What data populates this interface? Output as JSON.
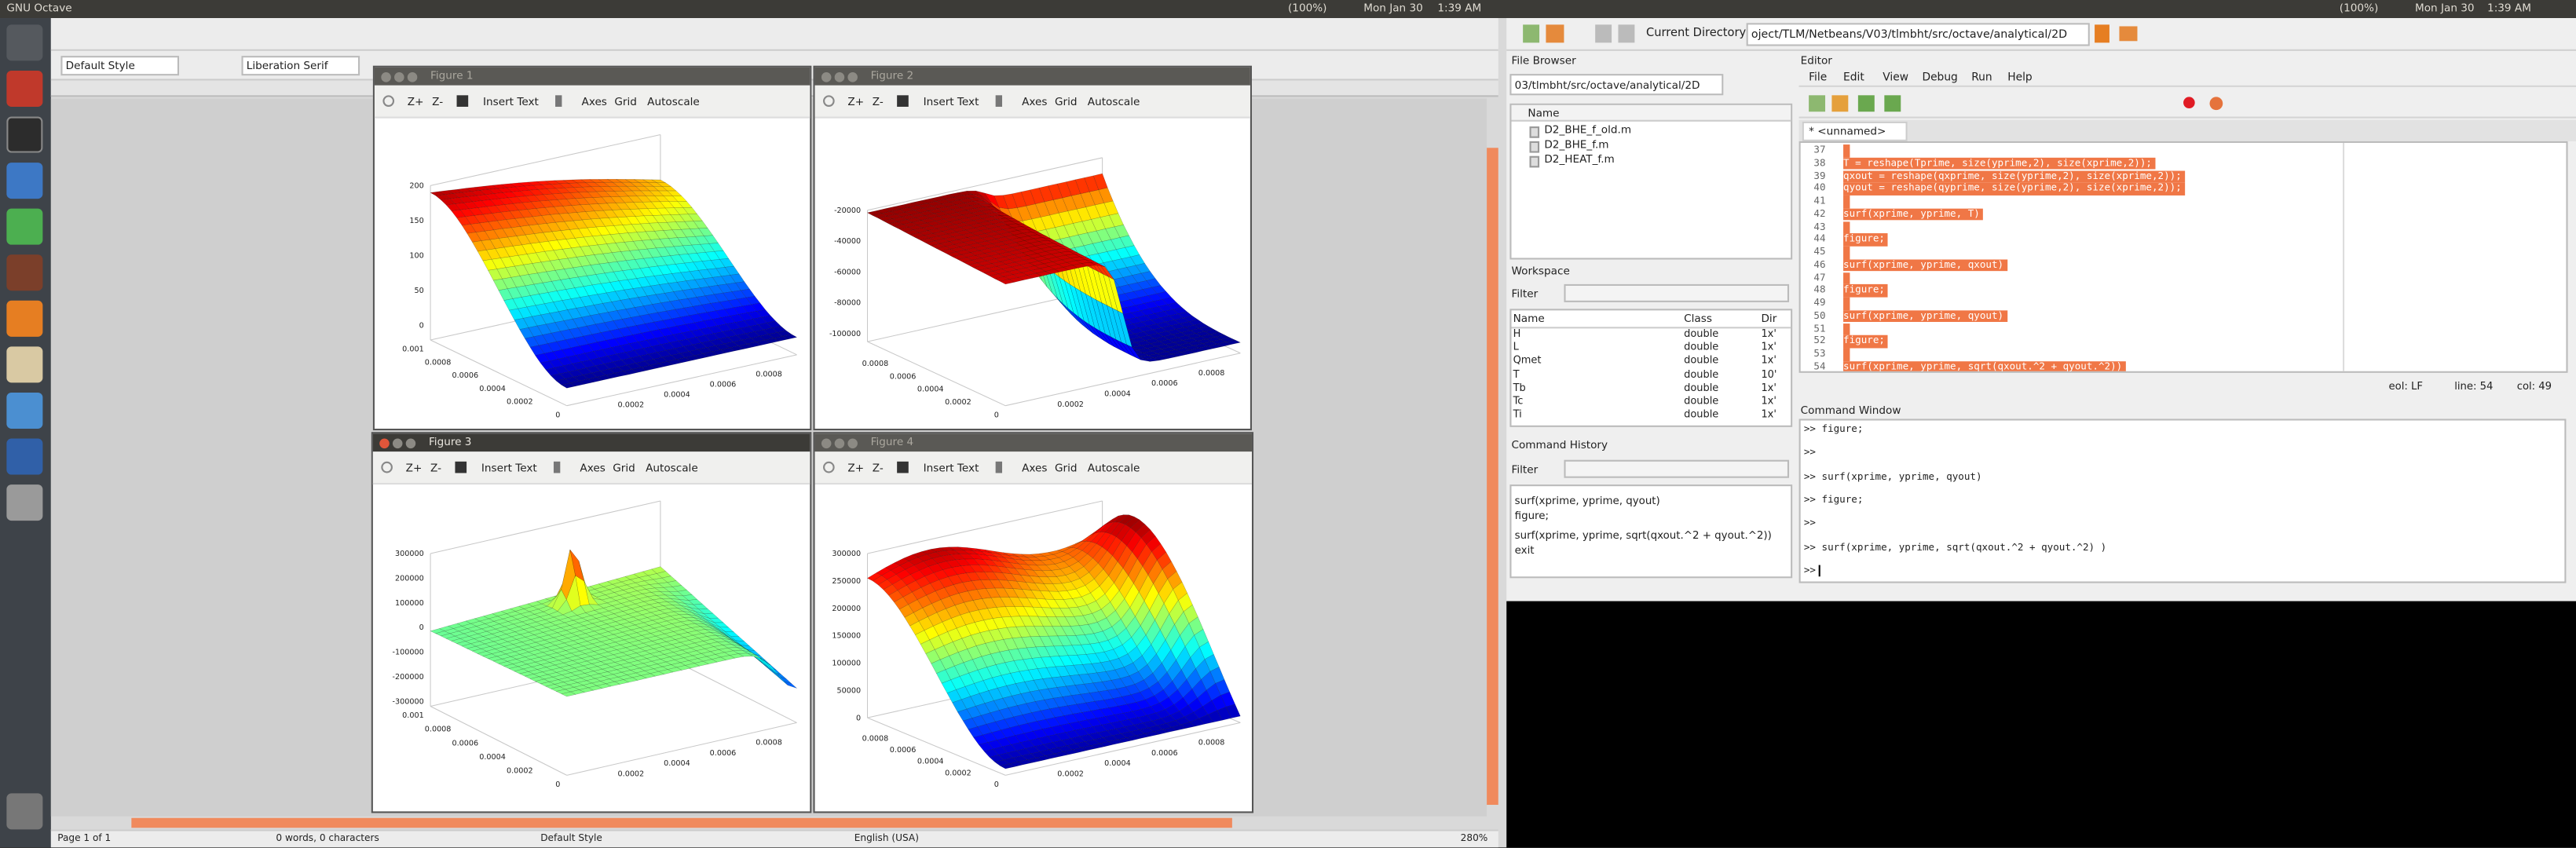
{
  "top_bar": {
    "app_title": "GNU Octave",
    "battery": "(100%)",
    "date": "Mon Jan 30",
    "time": "1:39 AM",
    "battery_2": "(100%)",
    "date_2": "Mon Jan 30",
    "time_2": "1:39 AM"
  },
  "writer": {
    "paragraph_style": "Default Style",
    "font_name": "Liberation Serif",
    "status": {
      "page": "Page 1 of 1",
      "words": "0 words, 0 characters",
      "style": "Default Style",
      "language": "English (USA)",
      "zoom": "280%"
    }
  },
  "figures": [
    {
      "title": "Figure 1",
      "toolbar": [
        "Z+",
        "Z-",
        "Insert Text",
        "Axes",
        "Grid",
        "Autoscale"
      ],
      "z_ticks": [
        "200",
        "150",
        "100",
        "50",
        "0"
      ],
      "left_ticks": [
        "0.001",
        "0.0008",
        "0.0006",
        "0.0004",
        "0.0002",
        "0"
      ],
      "right_ticks": [
        "0.0002",
        "0.0004",
        "0.0006",
        "0.0008"
      ]
    },
    {
      "title": "Figure 2",
      "toolbar": [
        "Z+",
        "Z-",
        "Insert Text",
        "Axes",
        "Grid",
        "Autoscale"
      ],
      "z_ticks": [
        "-20000",
        "-40000",
        "-60000",
        "-80000",
        "-100000"
      ],
      "left_ticks": [
        "0.0008",
        "0.0006",
        "0.0004",
        "0.0002",
        "0"
      ],
      "right_ticks": [
        "0.0002",
        "0.0004",
        "0.0006",
        "0.0008"
      ]
    },
    {
      "title": "Figure 3",
      "toolbar": [
        "Z+",
        "Z-",
        "Insert Text",
        "Axes",
        "Grid",
        "Autoscale"
      ],
      "z_ticks": [
        "300000",
        "200000",
        "100000",
        "0",
        "-100000",
        "-200000",
        "-300000"
      ],
      "left_ticks": [
        "0.001",
        "0.0008",
        "0.0006",
        "0.0004",
        "0.0002",
        "0"
      ],
      "right_ticks": [
        "0.0002",
        "0.0004",
        "0.0006",
        "0.0008"
      ]
    },
    {
      "title": "Figure 4",
      "toolbar": [
        "Z+",
        "Z-",
        "Insert Text",
        "Axes",
        "Grid",
        "Autoscale"
      ],
      "z_ticks": [
        "300000",
        "250000",
        "200000",
        "150000",
        "100000",
        "50000",
        "0"
      ],
      "left_ticks": [
        "0.0008",
        "0.0006",
        "0.0004",
        "0.0002",
        "0"
      ],
      "right_ticks": [
        "0.0002",
        "0.0004",
        "0.0006",
        "0.0008"
      ]
    }
  ],
  "octave": {
    "current_directory_label": "Current Directory:",
    "current_directory": "oject/TLM/Netbeans/V03/tlmbht/src/octave/analytical/2D",
    "file_browser": {
      "title": "File Browser",
      "path": "03/tlmbht/src/octave/analytical/2D",
      "column": "Name",
      "files": [
        "D2_BHE_f_old.m",
        "D2_BHE_f.m",
        "D2_HEAT_f.m"
      ]
    },
    "workspace": {
      "title": "Workspace",
      "filter": "Filter",
      "columns": [
        "Name",
        "Class",
        "Dir"
      ],
      "rows": [
        [
          "H",
          "double",
          "1x'"
        ],
        [
          "L",
          "double",
          "1x'"
        ],
        [
          "Qmet",
          "double",
          "1x'"
        ],
        [
          "T",
          "double",
          "10'"
        ],
        [
          "Tb",
          "double",
          "1x'"
        ],
        [
          "Tc",
          "double",
          "1x'"
        ],
        [
          "Ti",
          "double",
          "1x'"
        ]
      ]
    },
    "command_history": {
      "title": "Command History",
      "filter": "Filter",
      "entries": [
        "surf(xprime, yprime, qyout)",
        "figure;",
        "surf(xprime, yprime, sqrt(qxout.^2 + qyout.^2))",
        "exit"
      ]
    },
    "editor": {
      "title": "Editor",
      "menu": [
        "File",
        "Edit",
        "View",
        "Debug",
        "Run",
        "Help"
      ],
      "tab": "* <unnamed>",
      "lines": [
        {
          "n": "37"
        },
        {
          "n": "38",
          "code": "T = reshape(Tprime, size(yprime,2), size(xprime,2));"
        },
        {
          "n": "39",
          "code": "qxout = reshape(qxprime, size(yprime,2), size(xprime,2));"
        },
        {
          "n": "40",
          "code": "qyout = reshape(qyprime, size(yprime,2), size(xprime,2));"
        },
        {
          "n": "41"
        },
        {
          "n": "42",
          "code": "surf(xprime, yprime, T)"
        },
        {
          "n": "43"
        },
        {
          "n": "44",
          "code": "figure;"
        },
        {
          "n": "45"
        },
        {
          "n": "46",
          "code": "surf(xprime, yprime, qxout)"
        },
        {
          "n": "47"
        },
        {
          "n": "48",
          "code": "figure;"
        },
        {
          "n": "49"
        },
        {
          "n": "50",
          "code": "surf(xprime, yprime, qyout)"
        },
        {
          "n": "51"
        },
        {
          "n": "52",
          "code": "figure;"
        },
        {
          "n": "53"
        },
        {
          "n": "54",
          "code": "surf(xprime, yprime, sqrt(qxout.^2 + qyout.^2))"
        }
      ],
      "status": {
        "eol": "eol: LF",
        "line": "line: 54",
        "col": "col: 49"
      }
    },
    "command_window": {
      "title": "Command Window",
      "lines": [
        ">> figure;",
        ">>",
        ">> surf(xprime, yprime, qyout)",
        ">> figure;",
        ">>",
        ">> surf(xprime, yprime, sqrt(qxout.^2 + qyout.^2) )",
        ">>"
      ]
    }
  }
}
